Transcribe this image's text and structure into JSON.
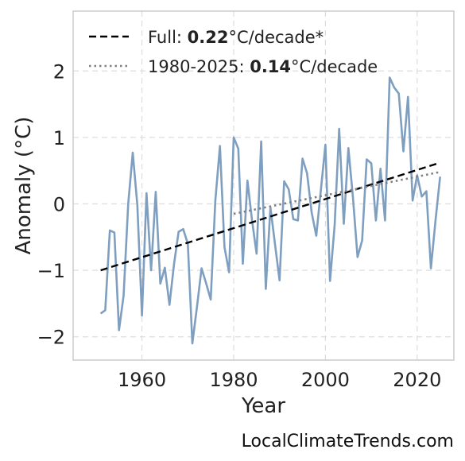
{
  "chart_data": {
    "type": "line",
    "xlabel": "Year",
    "ylabel": "Anomaly (°C)",
    "xlim": [
      1945,
      2028
    ],
    "ylim": [
      -2.35,
      2.9
    ],
    "xticks": [
      1960,
      1980,
      2000,
      2020
    ],
    "yticks": [
      -2,
      -1,
      0,
      1,
      2
    ],
    "ytick_labels": [
      "−2",
      "−1",
      "0",
      "1",
      "2"
    ],
    "grid": true,
    "legend_position": "top-left",
    "colors": {
      "series": "#7f9fc0",
      "full_trend": "#000000",
      "recent_trend": "#808080"
    },
    "series": [
      {
        "x": [
          1951,
          1952,
          1953,
          1954,
          1955,
          1956,
          1957,
          1958,
          1959,
          1960,
          1961,
          1962,
          1963,
          1964,
          1965,
          1966,
          1967,
          1968,
          1969,
          1970,
          1971,
          1972,
          1973,
          1974,
          1975,
          1976,
          1977,
          1978,
          1979,
          1980,
          1981,
          1982,
          1983,
          1984,
          1985,
          1986,
          1987,
          1988,
          1989,
          1990,
          1991,
          1992,
          1993,
          1994,
          1995,
          1996,
          1997,
          1998,
          1999,
          2000,
          2001,
          2002,
          2003,
          2004,
          2005,
          2006,
          2007,
          2008,
          2009,
          2010,
          2011,
          2012,
          2013,
          2014,
          2015,
          2016,
          2017,
          2018,
          2019,
          2020,
          2021,
          2022,
          2023,
          2024,
          2025
        ],
        "y": [
          -1.65,
          -1.6,
          -0.4,
          -0.43,
          -1.9,
          -1.38,
          0.0,
          0.77,
          -0.02,
          -1.68,
          0.16,
          -1.0,
          0.18,
          -1.2,
          -0.96,
          -1.52,
          -0.9,
          -0.42,
          -0.38,
          -0.6,
          -2.1,
          -1.55,
          -0.97,
          -1.2,
          -1.44,
          0.05,
          0.87,
          -0.65,
          -1.03,
          1.0,
          0.83,
          -0.9,
          0.35,
          -0.25,
          -0.75,
          0.94,
          -1.28,
          -0.05,
          -0.6,
          -1.15,
          0.34,
          0.22,
          -0.23,
          -0.25,
          0.68,
          0.46,
          -0.13,
          -0.48,
          0.2,
          0.89,
          -1.16,
          -0.32,
          1.13,
          -0.3,
          0.84,
          0.1,
          -0.8,
          -0.55,
          0.67,
          0.61,
          -0.25,
          0.53,
          -0.25,
          1.9,
          1.75,
          1.66,
          0.79,
          1.61,
          0.05,
          0.43,
          0.11,
          0.19,
          -0.97,
          -0.25,
          0.41
        ]
      }
    ],
    "trends": [
      {
        "key": "full",
        "x": [
          1951,
          2025
        ],
        "y": [
          -1.0,
          0.62
        ]
      },
      {
        "key": "recent",
        "x": [
          1980,
          2025
        ],
        "y": [
          -0.15,
          0.48
        ]
      }
    ],
    "legend": [
      {
        "key": "full",
        "prefix": "Full: ",
        "value": "0.22",
        "suffix": "°C/decade*"
      },
      {
        "key": "recent",
        "prefix": "1980-2025: ",
        "value": "0.14",
        "suffix": "°C/decade"
      }
    ]
  },
  "footer": {
    "source": "LocalClimateTrends.com"
  }
}
